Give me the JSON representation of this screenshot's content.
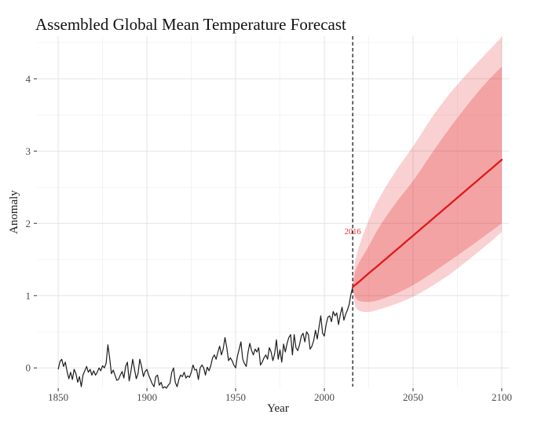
{
  "colors": {
    "background": "#ffffff",
    "grid_major": "#e3e3e3",
    "grid_minor": "#f1f1f1",
    "history_line": "#1c1c1c",
    "forecast_line": "#e0191c",
    "band_color": "#e31a1c",
    "outer_band_opacity": 0.2,
    "inner_band_opacity": 0.25,
    "tick_mark": "#333333",
    "axis_text": "#4a4a4a",
    "vline_color": "#1a1a1a",
    "vline_label_color": "#e03131"
  },
  "chart_data": {
    "type": "line",
    "title": "Assembled Global Mean Temperature Forecast",
    "xlabel": "Year",
    "ylabel": "Anomaly",
    "x_ticks": [
      1850,
      1900,
      1950,
      2000,
      2050,
      2100
    ],
    "x_tick_labels": [
      "1850",
      "1900",
      "1950",
      "2000",
      "2050",
      "2100"
    ],
    "x_minor_ticks": [
      1875,
      1925,
      1975,
      2025,
      2075
    ],
    "y_ticks": [
      0,
      1,
      2,
      3,
      4
    ],
    "y_tick_labels": [
      "0",
      "1",
      "2",
      "3",
      "4"
    ],
    "y_minor_ticks": [
      0.5,
      1.5,
      2.5,
      3.5,
      4.5
    ],
    "xlim": [
      1838,
      2104
    ],
    "ylim": [
      -0.28,
      4.59
    ],
    "grid": true,
    "legend": false,
    "vline": {
      "year": 2016,
      "label": "2016",
      "label_y": 1.95
    },
    "historical": {
      "name": "observed-anomaly",
      "start_year": 1850,
      "end_year": 2016,
      "values": [
        -0.02,
        0.09,
        0.12,
        0.02,
        0.08,
        -0.05,
        -0.15,
        -0.06,
        -0.16,
        -0.02,
        -0.08,
        -0.2,
        -0.12,
        -0.26,
        -0.1,
        -0.04,
        0.02,
        -0.06,
        -0.02,
        -0.1,
        -0.04,
        -0.1,
        -0.06,
        0.0,
        -0.04,
        0.03,
        0.0,
        0.06,
        0.32,
        0.14,
        -0.08,
        -0.03,
        -0.1,
        -0.17,
        -0.16,
        -0.1,
        -0.05,
        -0.14,
        0.02,
        0.08,
        -0.18,
        -0.05,
        0.12,
        -0.02,
        -0.15,
        -0.08,
        0.12,
        0.02,
        -0.12,
        -0.05,
        -0.02,
        -0.1,
        -0.16,
        -0.22,
        -0.26,
        -0.12,
        -0.1,
        -0.24,
        -0.2,
        -0.28,
        -0.26,
        -0.28,
        -0.24,
        -0.21,
        -0.06,
        0.0,
        -0.2,
        -0.26,
        -0.16,
        -0.1,
        -0.12,
        -0.06,
        -0.14,
        -0.11,
        -0.13,
        -0.06,
        0.04,
        -0.03,
        -0.02,
        -0.16,
        0.0,
        0.04,
        0.0,
        -0.1,
        0.01,
        -0.04,
        0.03,
        0.14,
        0.18,
        0.12,
        0.22,
        0.3,
        0.18,
        0.26,
        0.42,
        0.28,
        0.1,
        0.14,
        0.1,
        0.04,
        0.0,
        0.16,
        0.26,
        0.36,
        0.12,
        0.06,
        0.02,
        0.22,
        0.34,
        0.24,
        0.18,
        0.26,
        0.22,
        0.28,
        0.04,
        0.08,
        0.14,
        0.18,
        0.12,
        0.28,
        0.22,
        0.1,
        0.2,
        0.39,
        0.12,
        0.25,
        0.08,
        0.33,
        0.22,
        0.34,
        0.42,
        0.46,
        0.18,
        0.46,
        0.28,
        0.24,
        0.32,
        0.44,
        0.48,
        0.36,
        0.5,
        0.46,
        0.26,
        0.3,
        0.38,
        0.52,
        0.4,
        0.56,
        0.72,
        0.48,
        0.44,
        0.6,
        0.7,
        0.72,
        0.64,
        0.78,
        0.72,
        0.76,
        0.6,
        0.74,
        0.84,
        0.66,
        0.74,
        0.8,
        0.88,
        1.02,
        1.12
      ]
    },
    "forecast": {
      "name": "forecast-mean",
      "years": [
        2016,
        2017,
        2018,
        2020,
        2025,
        2030,
        2040,
        2050,
        2060,
        2070,
        2080,
        2090,
        2100
      ],
      "mean": [
        1.12,
        1.14,
        1.16,
        1.2,
        1.31,
        1.41,
        1.62,
        1.83,
        2.04,
        2.25,
        2.46,
        2.67,
        2.88
      ],
      "inner_hi": [
        1.12,
        1.3,
        1.38,
        1.48,
        1.68,
        1.92,
        2.28,
        2.58,
        2.95,
        3.3,
        3.62,
        3.92,
        4.17
      ],
      "inner_lo": [
        1.12,
        1.0,
        0.95,
        0.92,
        0.91,
        0.93,
        1.02,
        1.14,
        1.3,
        1.47,
        1.64,
        1.82,
        2.0
      ],
      "outer_hi": [
        1.12,
        1.42,
        1.55,
        1.72,
        2.05,
        2.32,
        2.72,
        3.06,
        3.45,
        3.78,
        4.06,
        4.32,
        4.58
      ],
      "outer_lo": [
        1.12,
        0.88,
        0.82,
        0.78,
        0.77,
        0.8,
        0.88,
        0.98,
        1.12,
        1.28,
        1.47,
        1.67,
        1.88
      ]
    }
  }
}
